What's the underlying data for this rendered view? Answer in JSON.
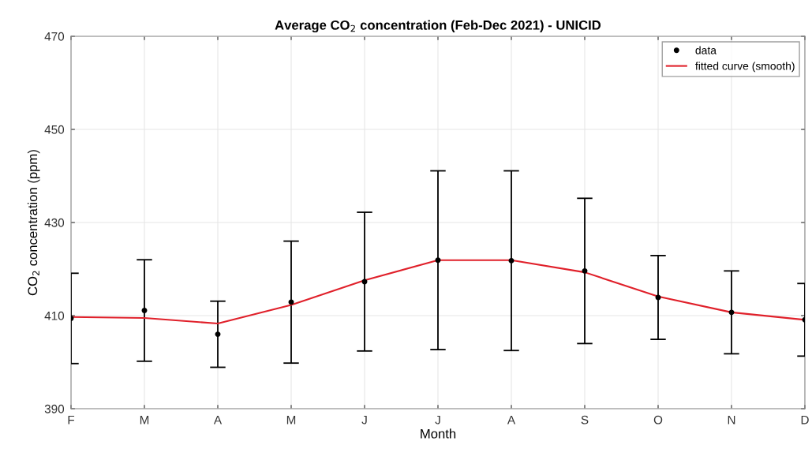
{
  "chart_data": {
    "type": "scatter",
    "title": "Average CO$_{2}$ concentration (Feb-Dec 2021) - UNICID",
    "xlabel": "Month",
    "ylabel": "CO$_{2}$ concentration (ppm)",
    "categories": [
      "F",
      "M",
      "A",
      "M",
      "J",
      "J",
      "A",
      "S",
      "O",
      "N",
      "D"
    ],
    "ylim": [
      390,
      470
    ],
    "yticks": [
      390,
      410,
      430,
      450,
      470
    ],
    "grid": true,
    "legend": "top right",
    "series": [
      {
        "name": "data",
        "color": "#000000",
        "marker": "circle",
        "values": [
          409.4,
          411.1,
          406.0,
          412.9,
          417.3,
          421.9,
          421.8,
          419.6,
          413.9,
          410.7,
          409.1
        ],
        "errors": [
          9.7,
          10.9,
          7.1,
          13.1,
          14.9,
          19.2,
          19.3,
          15.6,
          9.0,
          8.9,
          7.8
        ]
      },
      {
        "name": "fitted curve (smooth)",
        "type": "line",
        "color": "#e0202a",
        "line_style": "solid",
        "values": [
          409.7,
          409.5,
          408.3,
          412.3,
          417.6,
          421.9,
          421.9,
          419.3,
          414.1,
          410.7,
          409.1
        ]
      }
    ]
  }
}
